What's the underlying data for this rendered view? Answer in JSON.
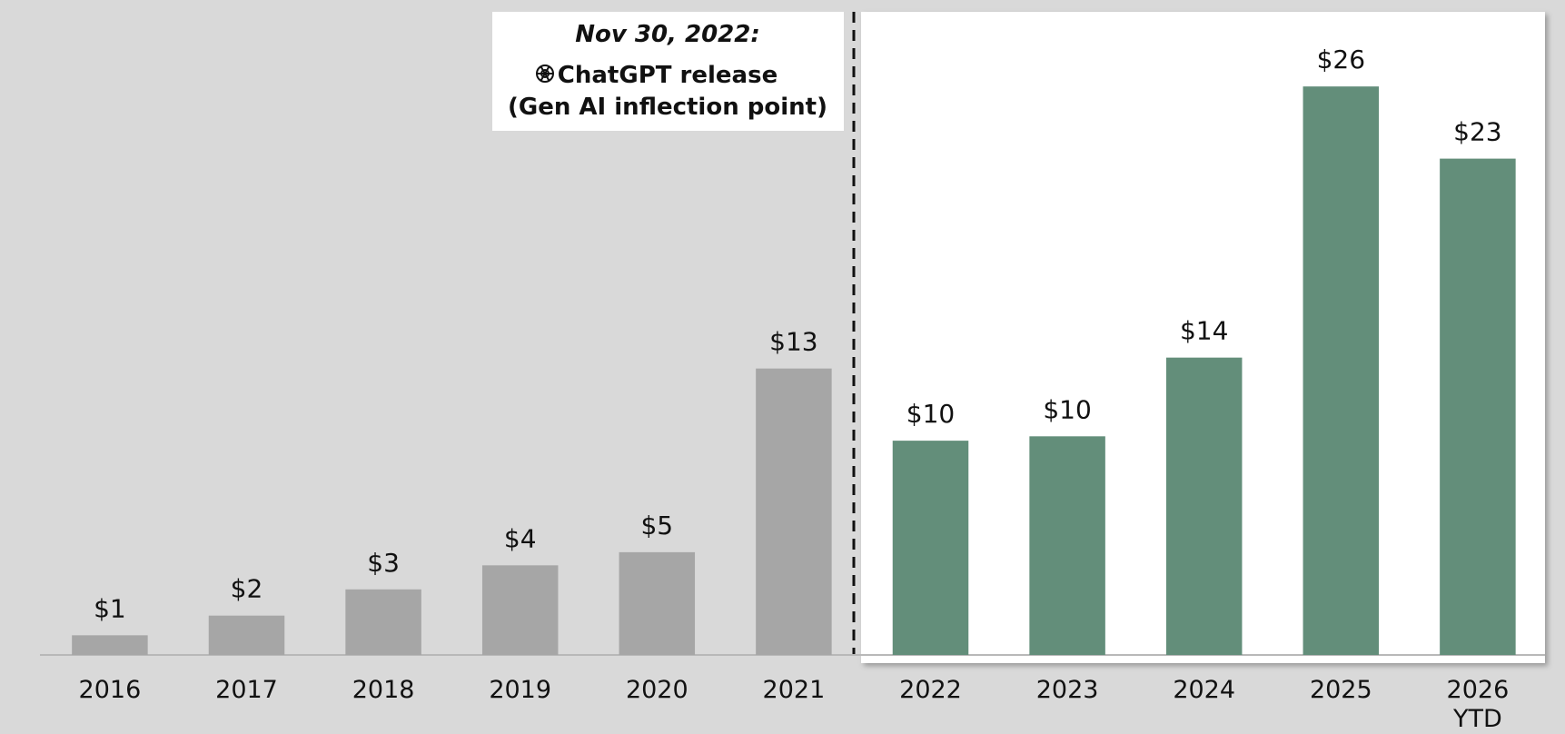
{
  "chart_data": {
    "type": "bar",
    "annotation": {
      "date": "Nov 30, 2022:",
      "line1": "ChatGPT release",
      "line2": "(Gen AI inflection point)"
    },
    "categories": [
      "2016",
      "2017",
      "2018",
      "2019",
      "2020",
      "2021",
      "2022",
      "2023",
      "2024",
      "2025",
      "2026 YTD"
    ],
    "values": [
      0.9,
      1.8,
      3.0,
      4.1,
      4.7,
      13.1,
      9.8,
      10.0,
      13.6,
      26.0,
      22.7
    ],
    "value_labels": [
      "$1",
      "$2",
      "$3",
      "$4",
      "$5",
      "$13",
      "$10",
      "$10",
      "$14",
      "$26",
      "$23"
    ],
    "colors": [
      "#a6a6a6",
      "#a6a6a6",
      "#a6a6a6",
      "#a6a6a6",
      "#a6a6a6",
      "#a6a6a6",
      "#638e7a",
      "#638e7a",
      "#638e7a",
      "#638e7a",
      "#638e7a"
    ]
  }
}
